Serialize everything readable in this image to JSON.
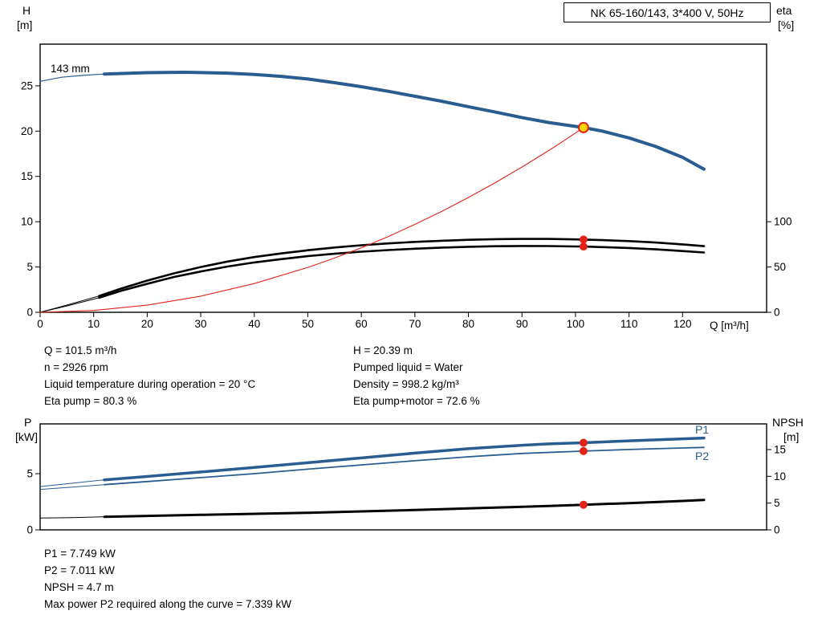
{
  "labels": {
    "q_axis": "Q [m³/h]"
  },
  "details_top": {
    "left": [
      "Q = 101.5 m³/h",
      "n = 2926 rpm",
      "Liquid temperature during operation = 20 °C",
      "Eta pump = 80.3 %"
    ],
    "right": [
      "H = 20.39 m",
      "Pumped liquid = Water",
      "Density = 998.2 kg/m³",
      "Eta pump+motor = 72.6 %"
    ]
  },
  "details_bottom": [
    "P1 = 7.749 kW",
    "P2 = 7.011 kW",
    "NPSH = 4.7 m",
    "Max power P2 required along the curve = 7.339 kW"
  ],
  "colors": {
    "curve_blue": "#2a5d8f",
    "marker_red": "#e2231a",
    "duty_yellow": "#ffd500",
    "curve_black": "#000000"
  },
  "chart_data": [
    {
      "type": "line",
      "name": "qh-eta-chart",
      "title": "NK 65-160/143, 3*400 V, 50Hz",
      "impeller_label": "143 mm",
      "x_axis": {
        "label": "Q [m³/h]",
        "min": 0,
        "max": 135.7,
        "ticks": [
          0,
          10,
          20,
          30,
          40,
          50,
          60,
          70,
          80,
          90,
          100,
          110,
          120
        ]
      },
      "y_axis": {
        "label_lines": [
          "H",
          "[m]"
        ],
        "min": 0,
        "max": 29.6,
        "ticks": [
          0,
          5,
          10,
          15,
          20,
          25
        ]
      },
      "y2_axis": {
        "label_lines": [
          "eta",
          "[%]"
        ],
        "min": 0,
        "max": 296,
        "ticks": [
          0,
          50,
          100
        ]
      },
      "series": [
        {
          "name": "eta-pump-lead",
          "axis": "y2",
          "color": "#000000",
          "width": 1,
          "points": [
            [
              0,
              0
            ],
            [
              5,
              8
            ],
            [
              11,
              18
            ]
          ]
        },
        {
          "name": "eta-pump-curve",
          "axis": "y2",
          "color": "#000000",
          "width": 2.6,
          "points": [
            [
              11,
              18
            ],
            [
              15,
              26
            ],
            [
              20,
              35
            ],
            [
              25,
              43
            ],
            [
              30,
              50
            ],
            [
              35,
              56
            ],
            [
              40,
              61
            ],
            [
              45,
              65
            ],
            [
              50,
              68.5
            ],
            [
              55,
              71.5
            ],
            [
              60,
              74
            ],
            [
              65,
              76
            ],
            [
              70,
              77.7
            ],
            [
              75,
              79
            ],
            [
              80,
              80
            ],
            [
              85,
              80.7
            ],
            [
              90,
              81
            ],
            [
              95,
              81
            ],
            [
              100,
              80.5
            ],
            [
              101.5,
              80.3
            ],
            [
              105,
              79.7
            ],
            [
              110,
              78.6
            ],
            [
              115,
              77
            ],
            [
              120,
              75
            ],
            [
              124,
              73
            ]
          ]
        },
        {
          "name": "eta-pump-motor-lead",
          "axis": "y2",
          "color": "#000000",
          "width": 1,
          "points": [
            [
              0,
              0
            ],
            [
              5,
              7
            ],
            [
              11,
              16
            ]
          ]
        },
        {
          "name": "eta-pump-motor-curve",
          "axis": "y2",
          "color": "#000000",
          "width": 2.6,
          "points": [
            [
              11,
              16
            ],
            [
              15,
              23.5
            ],
            [
              20,
              31.5
            ],
            [
              25,
              39
            ],
            [
              30,
              45
            ],
            [
              35,
              50.5
            ],
            [
              40,
              55
            ],
            [
              45,
              58.7
            ],
            [
              50,
              62
            ],
            [
              55,
              64.6
            ],
            [
              60,
              66.9
            ],
            [
              65,
              68.7
            ],
            [
              70,
              70.2
            ],
            [
              75,
              71.4
            ],
            [
              80,
              72.3
            ],
            [
              85,
              72.9
            ],
            [
              90,
              73.2
            ],
            [
              95,
              73.1
            ],
            [
              100,
              72.7
            ],
            [
              101.5,
              72.6
            ],
            [
              105,
              72
            ],
            [
              110,
              71
            ],
            [
              115,
              69.5
            ],
            [
              120,
              67.6
            ],
            [
              124,
              66
            ]
          ]
        },
        {
          "name": "system-curve",
          "axis": "y",
          "color": "#e2231a",
          "width": 1.1,
          "points": [
            [
              0,
              0
            ],
            [
              10,
              0.2
            ],
            [
              20,
              0.79
            ],
            [
              30,
              1.78
            ],
            [
              40,
              3.17
            ],
            [
              50,
              4.95
            ],
            [
              55,
              5.99
            ],
            [
              60,
              7.12
            ],
            [
              65,
              8.36
            ],
            [
              70,
              9.7
            ],
            [
              75,
              11.13
            ],
            [
              80,
              12.67
            ],
            [
              85,
              14.3
            ],
            [
              90,
              16.03
            ],
            [
              95,
              17.86
            ],
            [
              98,
              19.0
            ],
            [
              101.5,
              20.39
            ]
          ]
        },
        {
          "name": "head-curve-lead",
          "axis": "y",
          "color": "#2a5d8f",
          "width": 1.2,
          "points": [
            [
              0,
              25.5
            ],
            [
              4,
              25.95
            ],
            [
              8,
              26.15
            ],
            [
              12,
              26.3
            ]
          ]
        },
        {
          "name": "head-curve-143mm",
          "axis": "y",
          "color": "#2a5d8f",
          "width": 4,
          "points": [
            [
              12,
              26.3
            ],
            [
              20,
              26.45
            ],
            [
              27,
              26.5
            ],
            [
              35,
              26.4
            ],
            [
              40,
              26.25
            ],
            [
              45,
              26.05
            ],
            [
              50,
              25.75
            ],
            [
              55,
              25.35
            ],
            [
              60,
              24.9
            ],
            [
              65,
              24.4
            ],
            [
              70,
              23.85
            ],
            [
              75,
              23.3
            ],
            [
              80,
              22.7
            ],
            [
              85,
              22.1
            ],
            [
              90,
              21.5
            ],
            [
              95,
              20.95
            ],
            [
              101.5,
              20.39
            ],
            [
              105,
              20.0
            ],
            [
              110,
              19.25
            ],
            [
              115,
              18.3
            ],
            [
              120,
              17.1
            ],
            [
              124,
              15.8
            ]
          ]
        }
      ],
      "markers": [
        {
          "name": "eta-pump-point",
          "x": 101.5,
          "value": 80.3,
          "axis": "y2",
          "r": 5,
          "fill": "#e2231a",
          "stroke": "none",
          "stroke_width": 0
        },
        {
          "name": "eta-pump-motor-point",
          "x": 101.5,
          "value": 72.6,
          "axis": "y2",
          "r": 5,
          "fill": "#e2231a",
          "stroke": "none",
          "stroke_width": 0
        },
        {
          "name": "duty-point",
          "x": 101.5,
          "value": 20.39,
          "axis": "y",
          "r": 6,
          "fill": "#ffd500",
          "stroke": "#e2231a",
          "stroke_width": 2
        }
      ]
    },
    {
      "type": "line",
      "name": "power-npsh-chart",
      "curve_labels": [
        "P1",
        "P2"
      ],
      "x_axis": {
        "min": 0,
        "max": 135.7,
        "ticks": []
      },
      "y_axis": {
        "label_lines": [
          "P",
          "[kW]"
        ],
        "min": 0,
        "max": 9.43,
        "ticks": [
          0,
          5
        ]
      },
      "y2_axis": {
        "label_lines": [
          "NPSH",
          "[m]"
        ],
        "min": 0,
        "max": 19.8,
        "ticks": [
          0,
          5,
          10,
          15
        ]
      },
      "series": [
        {
          "name": "npsh-curve-lead",
          "axis": "y2",
          "color": "#000000",
          "width": 1,
          "points": [
            [
              0,
              2.2
            ],
            [
              6,
              2.3
            ],
            [
              12,
              2.45
            ]
          ]
        },
        {
          "name": "npsh-curve",
          "axis": "y2",
          "color": "#000000",
          "width": 3,
          "points": [
            [
              12,
              2.45
            ],
            [
              30,
              2.8
            ],
            [
              50,
              3.2
            ],
            [
              70,
              3.7
            ],
            [
              85,
              4.15
            ],
            [
              95,
              4.45
            ],
            [
              101.5,
              4.7
            ],
            [
              110,
              5.0
            ],
            [
              120,
              5.4
            ],
            [
              124,
              5.6
            ]
          ]
        },
        {
          "name": "p2-curve-lead",
          "axis": "y",
          "color": "#2a5d8f",
          "width": 1,
          "points": [
            [
              0,
              3.6
            ],
            [
              6,
              3.8
            ],
            [
              12,
              4.02
            ]
          ]
        },
        {
          "name": "p2-curve",
          "axis": "y",
          "color": "#2a5d8f",
          "width": 1.8,
          "points": [
            [
              12,
              4.02
            ],
            [
              20,
              4.3
            ],
            [
              30,
              4.65
            ],
            [
              40,
              5.0
            ],
            [
              50,
              5.4
            ],
            [
              60,
              5.78
            ],
            [
              70,
              6.15
            ],
            [
              80,
              6.5
            ],
            [
              90,
              6.8
            ],
            [
              101.5,
              7.011
            ],
            [
              110,
              7.15
            ],
            [
              120,
              7.29
            ],
            [
              124,
              7.339
            ]
          ]
        },
        {
          "name": "p1-curve-lead",
          "axis": "y",
          "color": "#2a5d8f",
          "width": 1,
          "points": [
            [
              0,
              3.85
            ],
            [
              6,
              4.15
            ],
            [
              12,
              4.45
            ]
          ]
        },
        {
          "name": "p1-curve",
          "axis": "y",
          "color": "#2a5d8f",
          "width": 3.5,
          "points": [
            [
              12,
              4.45
            ],
            [
              20,
              4.75
            ],
            [
              30,
              5.15
            ],
            [
              40,
              5.55
            ],
            [
              50,
              5.97
            ],
            [
              60,
              6.4
            ],
            [
              70,
              6.83
            ],
            [
              80,
              7.22
            ],
            [
              90,
              7.53
            ],
            [
              95,
              7.65
            ],
            [
              101.5,
              7.749
            ],
            [
              110,
              7.92
            ],
            [
              120,
              8.1
            ],
            [
              124,
              8.17
            ]
          ]
        }
      ],
      "markers": [
        {
          "name": "p1-point",
          "x": 101.5,
          "value": 7.749,
          "axis": "y",
          "r": 5,
          "fill": "#e2231a",
          "stroke": "none",
          "stroke_width": 0
        },
        {
          "name": "p2-point",
          "x": 101.5,
          "value": 7.011,
          "axis": "y",
          "r": 5,
          "fill": "#e2231a",
          "stroke": "none",
          "stroke_width": 0
        },
        {
          "name": "npsh-point",
          "x": 101.5,
          "value": 4.7,
          "axis": "y2",
          "r": 5,
          "fill": "#e2231a",
          "stroke": "none",
          "stroke_width": 0
        }
      ]
    }
  ]
}
